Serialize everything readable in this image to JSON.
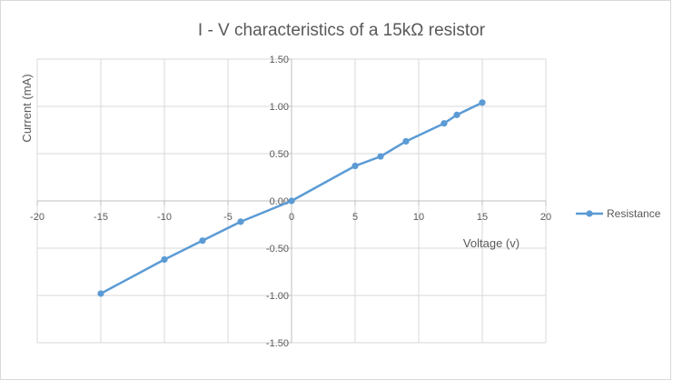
{
  "chart_data": {
    "type": "scatter",
    "title": "I - V characteristics of a 15kΩ resistor",
    "xlabel": "Voltage (v)",
    "ylabel": "Current (mA)",
    "xlim": [
      -20,
      20
    ],
    "ylim": [
      -1.5,
      1.5
    ],
    "x_ticks": [
      -20,
      -15,
      -10,
      -5,
      0,
      5,
      10,
      15,
      20
    ],
    "y_ticks": [
      1.5,
      1.0,
      0.5,
      0.0,
      -0.5,
      -1.0,
      -1.5
    ],
    "x_tick_labels": [
      "-20",
      "-15",
      "-10",
      "-5",
      "0",
      "5",
      "10",
      "15",
      "20"
    ],
    "y_tick_labels": [
      "1.50",
      "1.00",
      "0.50",
      "0.00",
      "-0.50",
      "-1.00",
      "-1.50"
    ],
    "grid": true,
    "legend_position": "right",
    "series": [
      {
        "name": "Resistance",
        "color": "#5b9bd5",
        "marker": "circle",
        "line": "straight",
        "x": [
          -15,
          -10,
          -7,
          -4,
          0,
          5,
          7,
          9,
          12,
          13,
          15
        ],
        "y": [
          -0.98,
          -0.62,
          -0.42,
          -0.22,
          0.0,
          0.37,
          0.47,
          0.63,
          0.82,
          0.91,
          1.04
        ]
      }
    ]
  }
}
